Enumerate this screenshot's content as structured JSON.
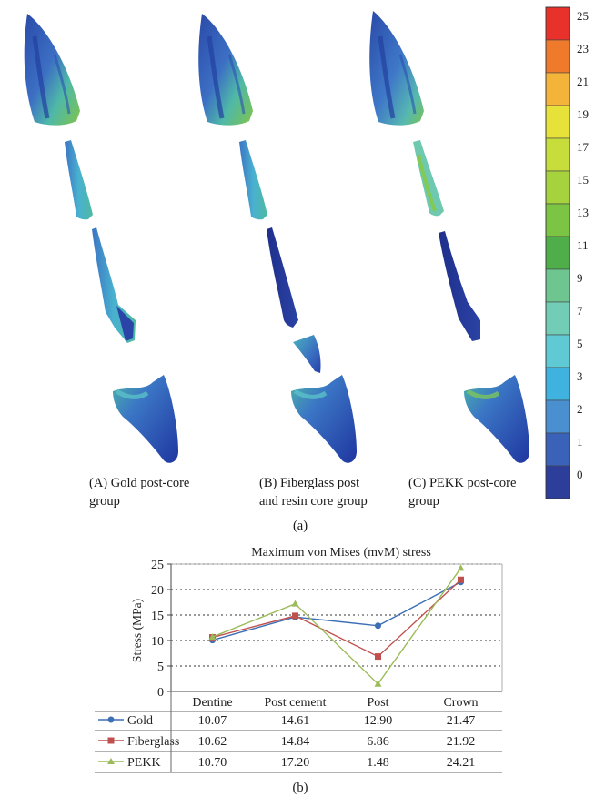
{
  "panel_a": {
    "captions": [
      "(A) Gold post-core\ngroup",
      "(B) Fiberglass post\nand resin core group",
      "(C) PEKK post-core\ngroup"
    ],
    "label": "(a)",
    "colorbar": {
      "ticks": [
        "25",
        "23",
        "21",
        "19",
        "17",
        "15",
        "13",
        "11",
        "9",
        "7",
        "5",
        "3",
        "2",
        "1",
        "0"
      ],
      "colors": [
        "#e8312a",
        "#f07a2c",
        "#f4b43a",
        "#e7e23a",
        "#c7dd3c",
        "#a6d23e",
        "#7cc443",
        "#4fae4a",
        "#6fc58f",
        "#72cdb7",
        "#5fc9d4",
        "#3fb2e0",
        "#4a8fd0",
        "#3a62b8",
        "#2d3d9a"
      ]
    },
    "shape_colors": {
      "blue_dark": "#22389a",
      "blue": "#3c66c0",
      "cyan": "#50b8d8",
      "teal": "#4fb7a6",
      "green": "#79bf45"
    }
  },
  "chart_data": {
    "type": "line",
    "title": "Maximum von Mises (mvM) stress",
    "ylabel": "Stress (MPa)",
    "xlabel": "",
    "ylim": [
      0,
      25
    ],
    "yticks": [
      "0",
      "5",
      "10",
      "15",
      "20",
      "25"
    ],
    "grid": "horizontal dotted",
    "categories": [
      "Dentine",
      "Post cement",
      "Post",
      "Crown"
    ],
    "series": [
      {
        "name": "Gold",
        "marker": "circle",
        "color": "#3d6fb5",
        "values": [
          10.07,
          14.61,
          12.9,
          21.47
        ],
        "labels": [
          "10.07",
          "14.61",
          "12.90",
          "21.47"
        ]
      },
      {
        "name": "Fiberglass",
        "marker": "square",
        "color": "#c0504d",
        "values": [
          10.62,
          14.84,
          6.86,
          21.92
        ],
        "labels": [
          "10.62",
          "14.84",
          "6.86",
          "21.92"
        ]
      },
      {
        "name": "PEKK",
        "marker": "triangle",
        "color": "#9bbb59",
        "values": [
          10.7,
          17.2,
          1.48,
          24.21
        ],
        "labels": [
          "10.70",
          "17.20",
          "1.48",
          "24.21"
        ]
      }
    ]
  },
  "panel_b": {
    "label": "(b)"
  }
}
